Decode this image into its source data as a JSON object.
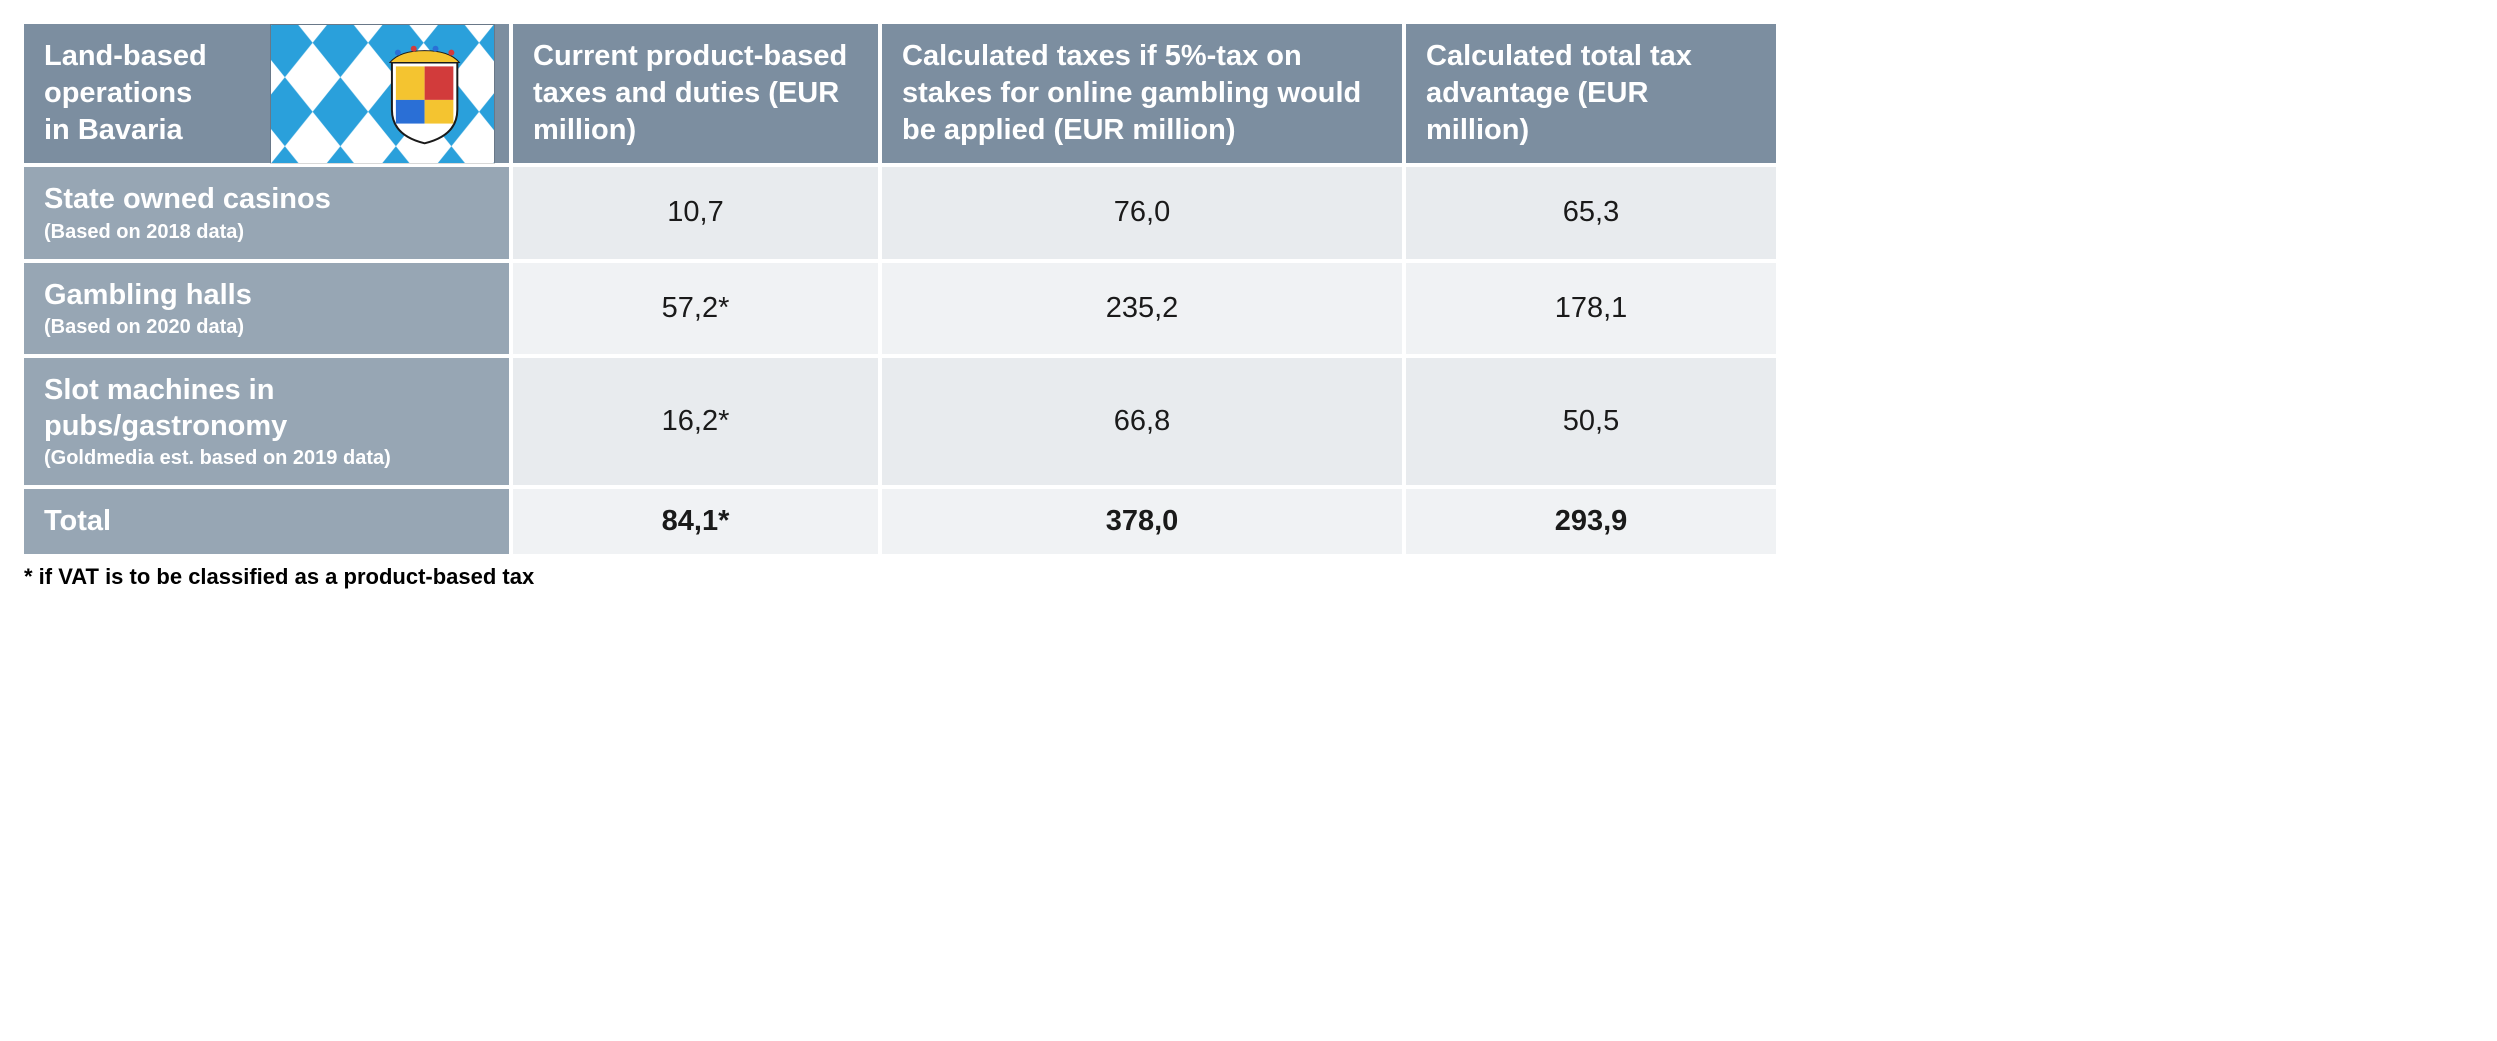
{
  "colors": {
    "header_bg": "#7c8ea0",
    "rowlabel_bg": "#97a6b4",
    "data_bg_odd": "#e8ebee",
    "data_bg_even": "#f0f2f4",
    "header_text": "#ffffff",
    "data_text": "#1a1a1a",
    "flag_blue": "#2aa0db",
    "flag_white": "#ffffff"
  },
  "table": {
    "headers": {
      "c1": "Land-based operations\nin Bavaria",
      "c2": "Current product-based taxes and duties (EUR million)",
      "c3": "Calculated taxes if 5%-tax on stakes for online gambling would be applied (EUR million)",
      "c4": "Calculated total tax advantage (EUR million)"
    },
    "rows": [
      {
        "label": "State owned casinos",
        "sublabel": "(Based on 2018 data)",
        "c2": "10,7",
        "c3": "76,0",
        "c4": "65,3"
      },
      {
        "label": "Gambling halls",
        "sublabel": "(Based on 2020 data)",
        "c2": "57,2*",
        "c3": "235,2",
        "c4": "178,1"
      },
      {
        "label": "Slot machines in pubs/gastronomy",
        "sublabel": "(Goldmedia est. based on 2019 data)",
        "c2": "16,2*",
        "c3": "66,8",
        "c4": "50,5"
      }
    ],
    "total": {
      "label": "Total",
      "c2": "84,1*",
      "c3": "378,0",
      "c4": "293,9"
    }
  },
  "footnote": "* if VAT is to be classified as a product-based tax"
}
